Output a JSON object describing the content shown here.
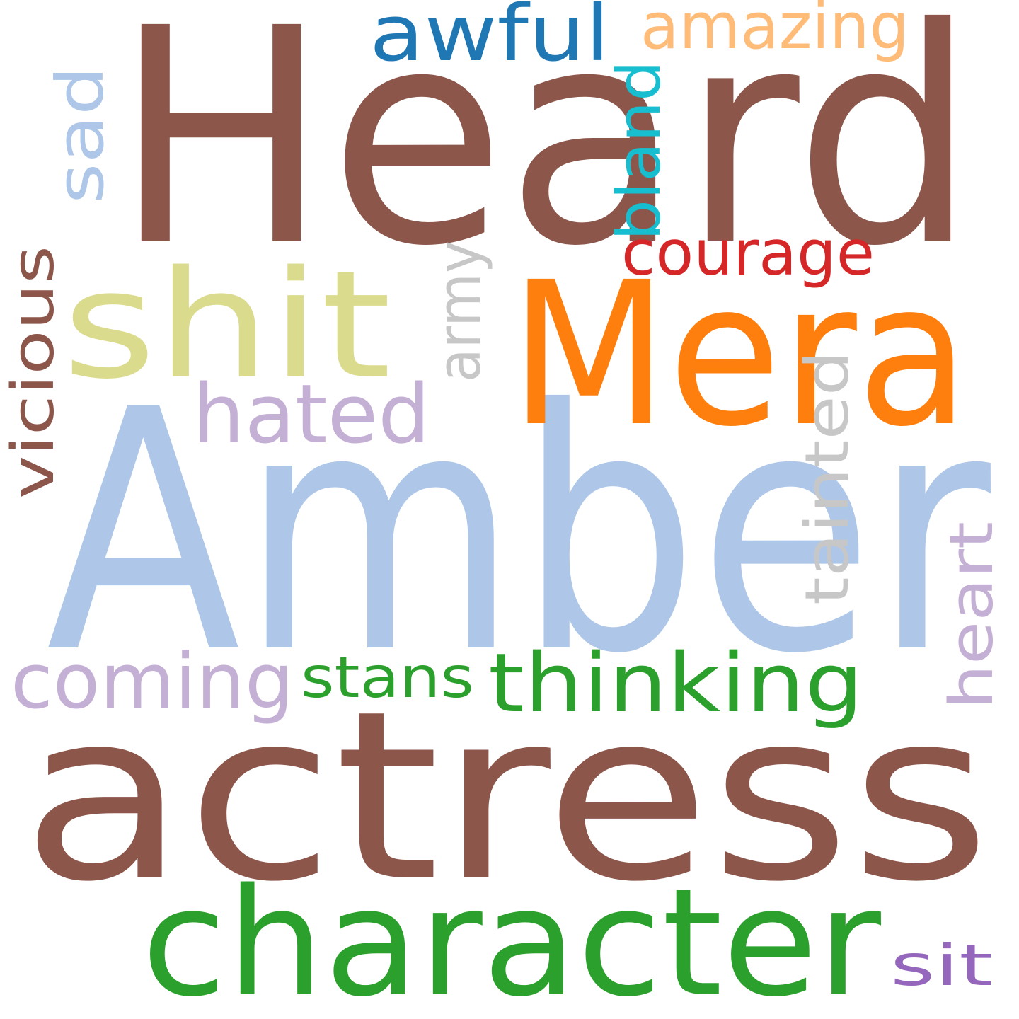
{
  "words": [
    {
      "text": "Heard",
      "color": "#8c564b"
    },
    {
      "text": "Amber",
      "color": "#aec7e8"
    },
    {
      "text": "actress",
      "color": "#8c564b"
    },
    {
      "text": "Mera",
      "color": "#ff7f0e"
    },
    {
      "text": "character",
      "color": "#2ca02c"
    },
    {
      "text": "shit",
      "color": "#dbdb8d"
    },
    {
      "text": "awful",
      "color": "#1f77b4"
    },
    {
      "text": "amazing",
      "color": "#ffbb78"
    },
    {
      "text": "sad",
      "color": "#aec7e8"
    },
    {
      "text": "bland",
      "color": "#17becf"
    },
    {
      "text": "courage",
      "color": "#d62728"
    },
    {
      "text": "army",
      "color": "#c7c7c7"
    },
    {
      "text": "vicious",
      "color": "#8c564b"
    },
    {
      "text": "hated",
      "color": "#c5b0d5"
    },
    {
      "text": "tainted",
      "color": "#c7c7c7"
    },
    {
      "text": "heart",
      "color": "#c5b0d5"
    },
    {
      "text": "coming",
      "color": "#c5b0d5"
    },
    {
      "text": "stans",
      "color": "#2ca02c"
    },
    {
      "text": "thinking",
      "color": "#2ca02c"
    },
    {
      "text": "sit",
      "color": "#9467bd"
    }
  ]
}
